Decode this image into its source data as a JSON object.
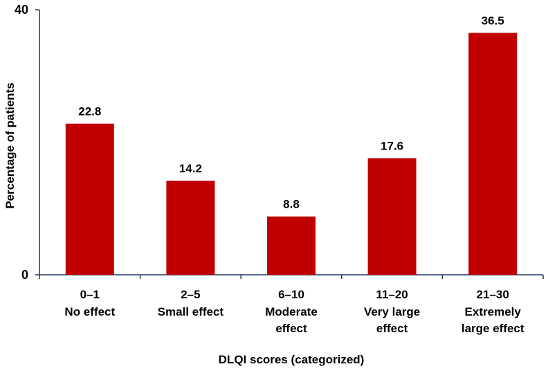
{
  "chart_data": {
    "type": "bar",
    "title": "",
    "xlabel": "DLQI scores (categorized)",
    "ylabel": "Percentage of patients",
    "ylim": [
      0,
      40
    ],
    "yticks": [
      0,
      40
    ],
    "bar_color": "#c00000",
    "axis_color": "#1f3864",
    "categories": [
      {
        "range": "0–1",
        "desc": [
          "No effect"
        ]
      },
      {
        "range": "2–5",
        "desc": [
          "Small effect"
        ]
      },
      {
        "range": "6–10",
        "desc": [
          "Moderate",
          "effect"
        ]
      },
      {
        "range": "11–20",
        "desc": [
          "Very large",
          "effect"
        ]
      },
      {
        "range": "21–30",
        "desc": [
          "Extremely",
          "large effect"
        ]
      }
    ],
    "values": [
      22.8,
      14.2,
      8.8,
      17.6,
      36.5
    ],
    "value_labels": [
      "22.8",
      "14.2",
      "8.8",
      "17.6",
      "36.5"
    ]
  }
}
